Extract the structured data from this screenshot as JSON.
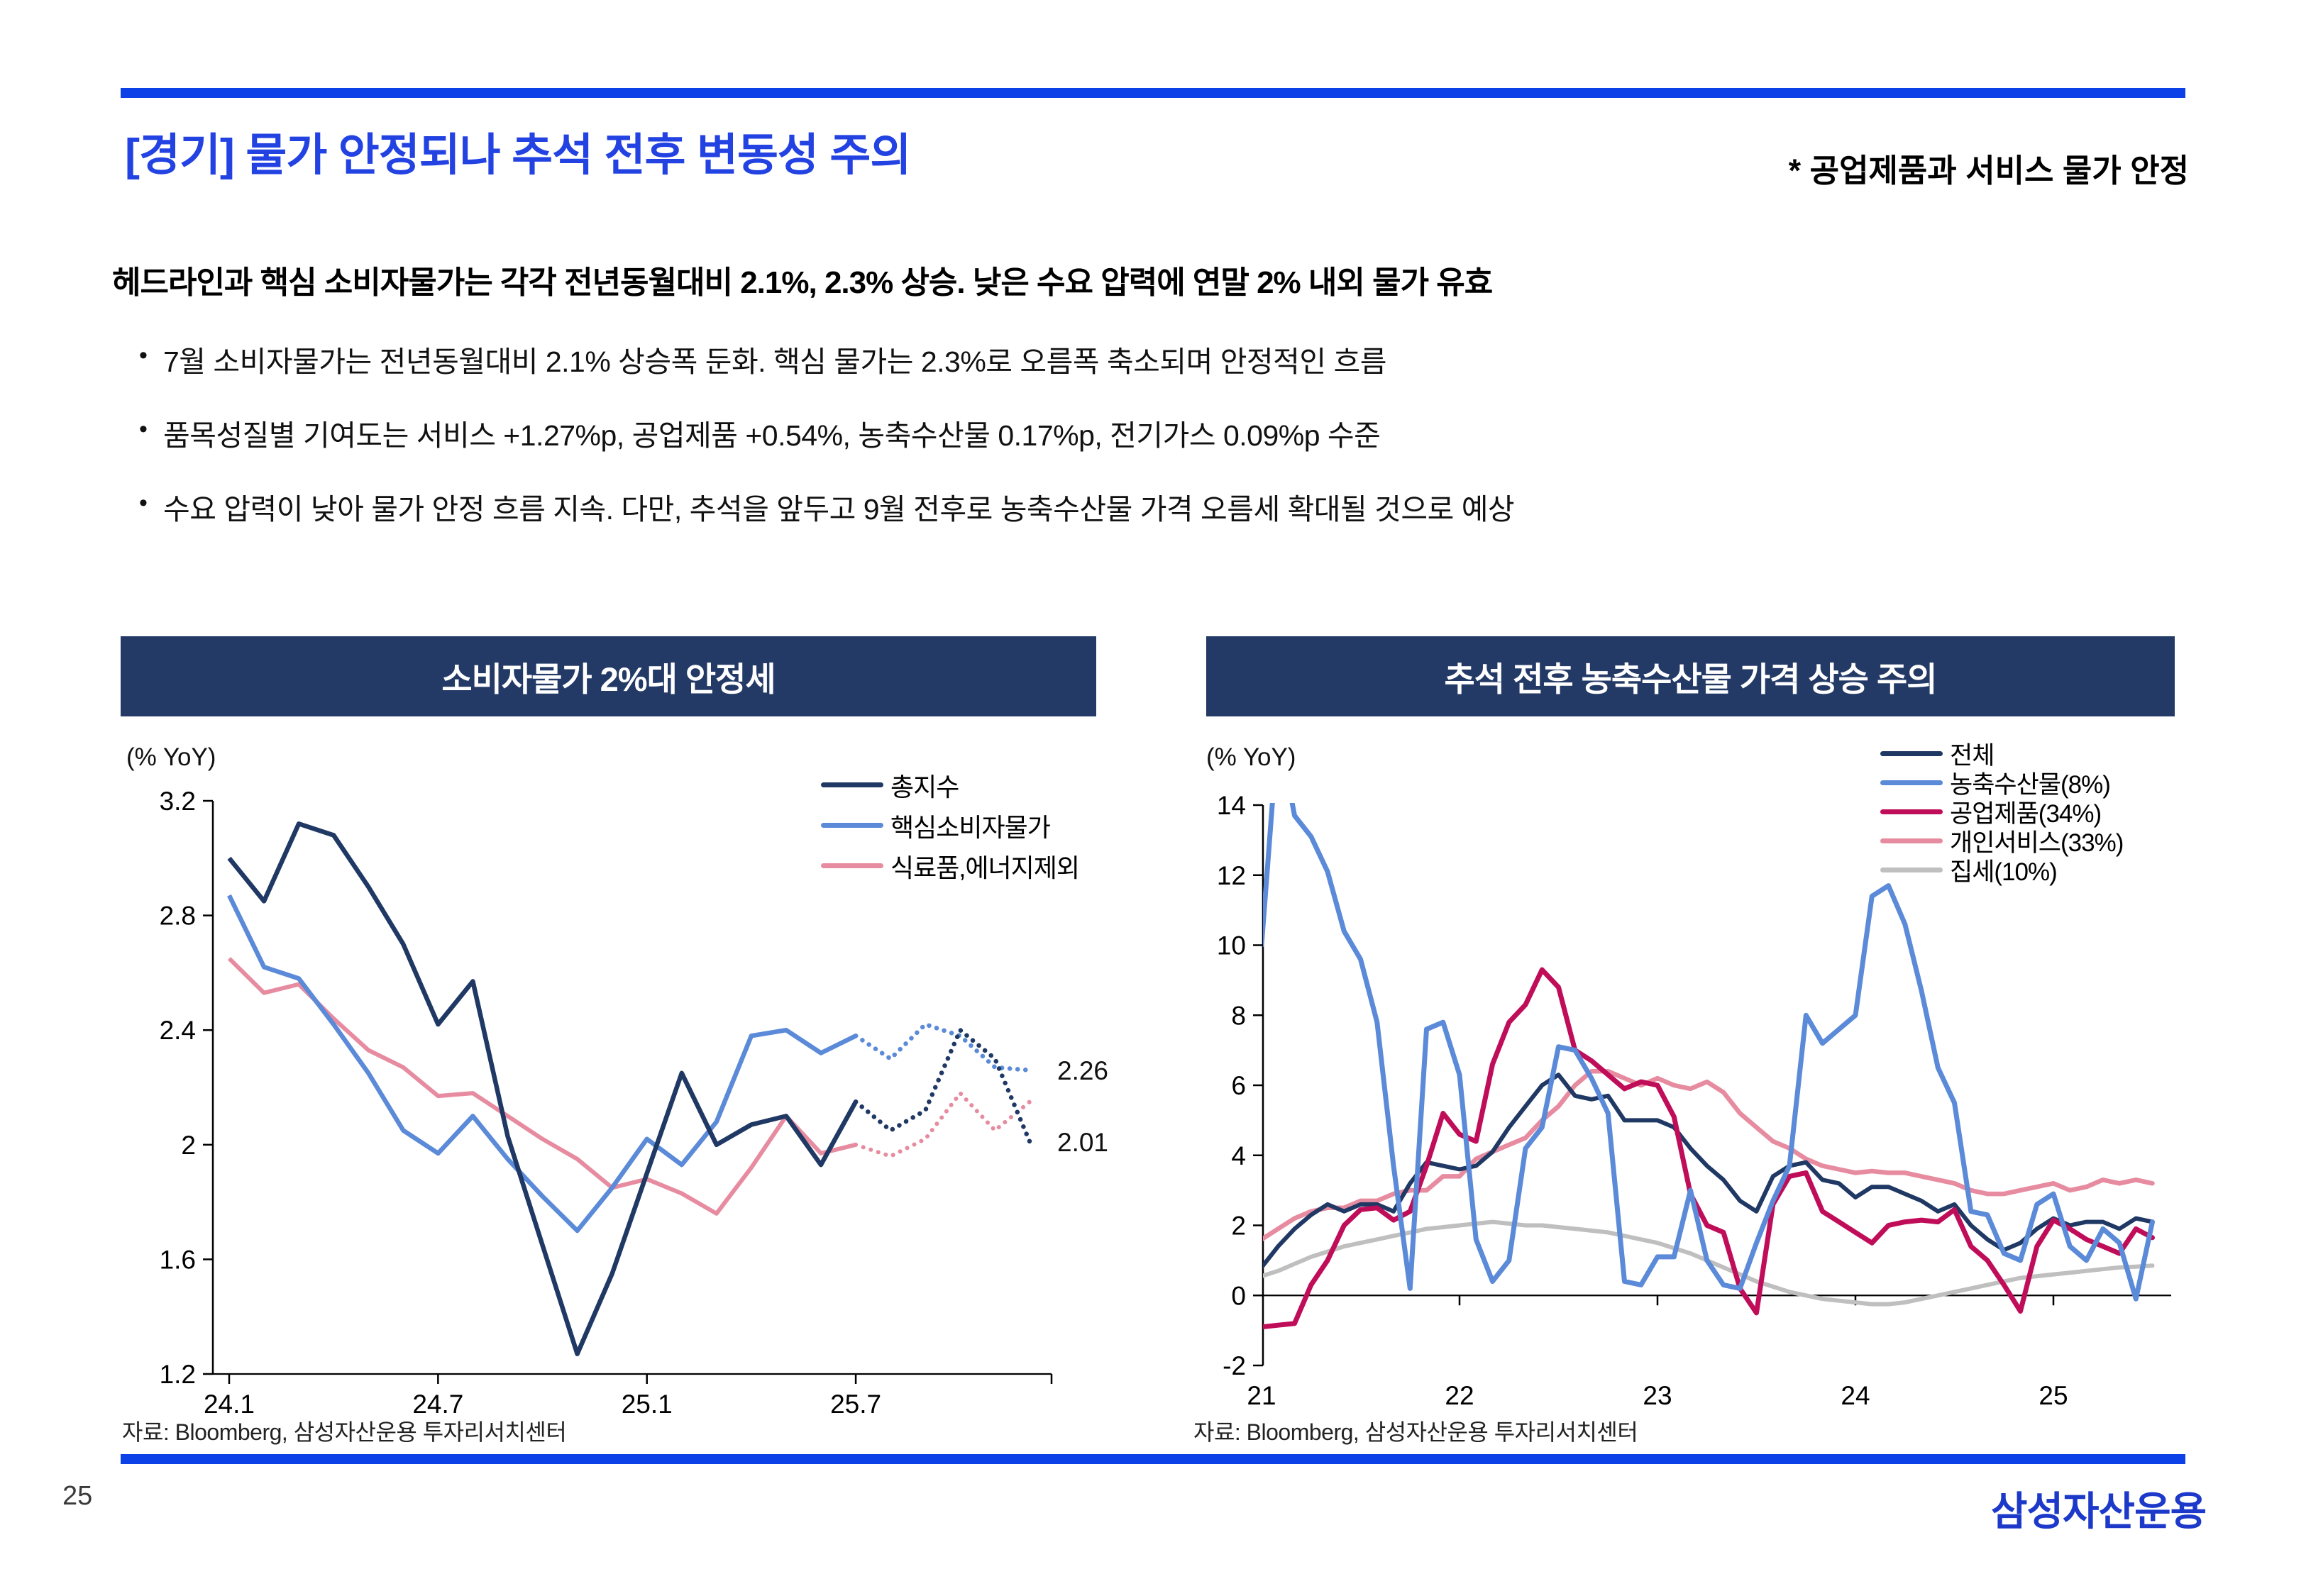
{
  "slide": {
    "title": "[경기] 물가 안정되나 추석 전후 변동성 주의",
    "title_note": "* 공업제품과 서비스 물가 안정",
    "headline": "헤드라인과 핵심 소비자물가는 각각 전년동월대비 2.1%, 2.3% 상승. 낮은 수요 압력에 연말 2% 내외 물가 유효",
    "bullets": [
      "7월 소비자물가는 전년동월대비 2.1% 상승폭 둔화. 핵심 물가는 2.3%로 오름폭 축소되며 안정적인 흐름",
      "품목성질별 기여도는 서비스 +1.27%p, 공업제품 +0.54%, 농축수산물 0.17%p, 전기가스 0.09%p 수준",
      "수요 압력이 낮아 물가 안정 흐름 지속. 다만, 추석을 앞두고 9월 전후로 농축수산물 가격 오름세 확대될 것으로 예상"
    ],
    "page_number": "25",
    "logo": "삼성자산운용",
    "accent_blue": "#0C41E8",
    "header_navy": "#243A66"
  },
  "chart_data": [
    {
      "type": "line",
      "title": "소비자물가 2%대 안정세",
      "unit_label": "(% YoY)",
      "source": "자료: Bloomberg, 삼성자산운용 투자리서치센터",
      "ylim": [
        1.2,
        3.2
      ],
      "y_ticks": [
        "3.2",
        "2.8",
        "2.4",
        "2",
        "1.6",
        "1.2"
      ],
      "x_ticks": [
        {
          "label": "24.1",
          "index": 0
        },
        {
          "label": "24.7",
          "index": 6
        },
        {
          "label": "25.1",
          "index": 12
        },
        {
          "label": "25.7",
          "index": 18
        }
      ],
      "legend_position": "top-right-inside",
      "grid": false,
      "series": [
        {
          "name": "총지수",
          "color": "#1F3864",
          "split": 18,
          "end_label": "2.01",
          "values": [
            3.0,
            2.85,
            3.12,
            3.08,
            2.9,
            2.7,
            2.42,
            2.57,
            2.03,
            1.65,
            1.27,
            1.55,
            1.9,
            2.25,
            2.0,
            2.07,
            2.1,
            1.93,
            2.15,
            2.05,
            2.12,
            2.4,
            2.3,
            2.01
          ]
        },
        {
          "name": "핵심소비자물가",
          "color": "#5B8AD8",
          "split": 18,
          "end_label": "2.26",
          "values": [
            2.87,
            2.62,
            2.58,
            2.42,
            2.25,
            2.05,
            1.97,
            2.1,
            1.95,
            1.82,
            1.7,
            1.85,
            2.02,
            1.93,
            2.08,
            2.38,
            2.4,
            2.32,
            2.38,
            2.3,
            2.42,
            2.38,
            2.27,
            2.26
          ]
        },
        {
          "name": "식료품,에너지제외",
          "color": "#E78CA0",
          "split": 18,
          "values": [
            2.65,
            2.53,
            2.56,
            2.44,
            2.33,
            2.27,
            2.17,
            2.18,
            2.1,
            2.02,
            1.95,
            1.85,
            1.88,
            1.83,
            1.76,
            1.92,
            2.1,
            1.97,
            2.0,
            1.96,
            2.02,
            2.18,
            2.05,
            2.15
          ]
        }
      ]
    },
    {
      "type": "line",
      "title": "추석 전후 농축수산물 가격 상승 주의",
      "unit_label": "(% YoY)",
      "source": "자료: Bloomberg, 삼성자산운용 투자리서치센터",
      "ylim": [
        -2,
        14
      ],
      "y_ticks": [
        "14",
        "12",
        "10",
        "8",
        "6",
        "4",
        "2",
        "0",
        "-2"
      ],
      "x_ticks": [
        {
          "label": "21",
          "index": 0
        },
        {
          "label": "22",
          "index": 12
        },
        {
          "label": "23",
          "index": 24
        },
        {
          "label": "24",
          "index": 36
        },
        {
          "label": "25",
          "index": 48
        }
      ],
      "legend_position": "top-right-inside",
      "grid": false,
      "series": [
        {
          "name": "전체",
          "color": "#1F3864",
          "values": [
            0.8,
            1.4,
            1.9,
            2.3,
            2.6,
            2.4,
            2.6,
            2.6,
            2.4,
            3.2,
            3.8,
            3.7,
            3.6,
            3.7,
            4.1,
            4.8,
            5.4,
            6.0,
            6.3,
            5.7,
            5.6,
            5.7,
            5.0,
            5.0,
            5.0,
            4.8,
            4.2,
            3.7,
            3.3,
            2.7,
            2.4,
            3.4,
            3.7,
            3.8,
            3.3,
            3.2,
            2.8,
            3.1,
            3.1,
            2.9,
            2.7,
            2.4,
            2.6,
            2.0,
            1.6,
            1.3,
            1.5,
            1.9,
            2.2,
            2.0,
            2.1,
            2.1,
            1.9,
            2.2,
            2.1
          ]
        },
        {
          "name": "농축수산물(8%)",
          "color": "#5B8AD8",
          "values": [
            10.0,
            16.2,
            13.7,
            13.1,
            12.1,
            10.4,
            9.6,
            7.8,
            3.7,
            0.2,
            7.6,
            7.8,
            6.3,
            1.6,
            0.4,
            1.0,
            4.2,
            4.8,
            7.1,
            7.0,
            6.2,
            5.2,
            0.4,
            0.3,
            1.1,
            1.1,
            3.0,
            1.0,
            0.3,
            0.2,
            1.5,
            2.7,
            3.7,
            8.0,
            7.2,
            7.6,
            8.0,
            11.4,
            11.7,
            10.6,
            8.7,
            6.5,
            5.5,
            2.4,
            2.3,
            1.2,
            1.0,
            2.6,
            2.9,
            1.4,
            1.0,
            1.9,
            1.5,
            -0.1,
            2.1
          ]
        },
        {
          "name": "공업제품(34%)",
          "color": "#C00D59",
          "values": [
            -0.9,
            -0.85,
            -0.8,
            0.3,
            1.0,
            2.0,
            2.45,
            2.5,
            2.15,
            2.4,
            3.7,
            5.2,
            4.6,
            4.4,
            6.6,
            7.8,
            8.3,
            9.3,
            8.8,
            7.0,
            6.7,
            6.3,
            5.9,
            6.1,
            6.0,
            5.1,
            2.9,
            2.0,
            1.8,
            0.2,
            -0.5,
            2.6,
            3.4,
            3.5,
            2.4,
            2.1,
            1.8,
            1.5,
            2.0,
            2.1,
            2.15,
            2.1,
            2.45,
            1.4,
            1.0,
            0.3,
            -0.45,
            1.4,
            2.15,
            1.9,
            1.6,
            1.4,
            1.2,
            1.9,
            1.65
          ]
        },
        {
          "name": "개인서비스(33%)",
          "color": "#E78CA0",
          "values": [
            1.6,
            1.9,
            2.2,
            2.4,
            2.5,
            2.5,
            2.7,
            2.7,
            2.9,
            3.0,
            3.0,
            3.4,
            3.4,
            3.9,
            4.1,
            4.3,
            4.5,
            5.0,
            5.4,
            6.0,
            6.4,
            6.4,
            6.2,
            6.0,
            6.2,
            6.0,
            5.9,
            6.1,
            5.8,
            5.2,
            4.8,
            4.4,
            4.2,
            3.9,
            3.7,
            3.6,
            3.5,
            3.55,
            3.5,
            3.5,
            3.4,
            3.3,
            3.2,
            3.0,
            2.9,
            2.9,
            3.0,
            3.1,
            3.2,
            3.0,
            3.1,
            3.3,
            3.2,
            3.3,
            3.2
          ]
        },
        {
          "name": "집세(10%)",
          "color": "#BFBFBF",
          "values": [
            0.55,
            0.7,
            0.9,
            1.1,
            1.25,
            1.4,
            1.5,
            1.6,
            1.7,
            1.8,
            1.9,
            1.95,
            2.0,
            2.05,
            2.1,
            2.05,
            2.0,
            2.0,
            1.95,
            1.9,
            1.85,
            1.8,
            1.7,
            1.6,
            1.5,
            1.35,
            1.2,
            1.0,
            0.8,
            0.6,
            0.4,
            0.25,
            0.1,
            0.0,
            -0.1,
            -0.15,
            -0.2,
            -0.25,
            -0.25,
            -0.2,
            -0.1,
            0.0,
            0.1,
            0.2,
            0.3,
            0.4,
            0.5,
            0.55,
            0.6,
            0.65,
            0.7,
            0.75,
            0.8,
            0.82,
            0.85
          ]
        }
      ]
    }
  ]
}
